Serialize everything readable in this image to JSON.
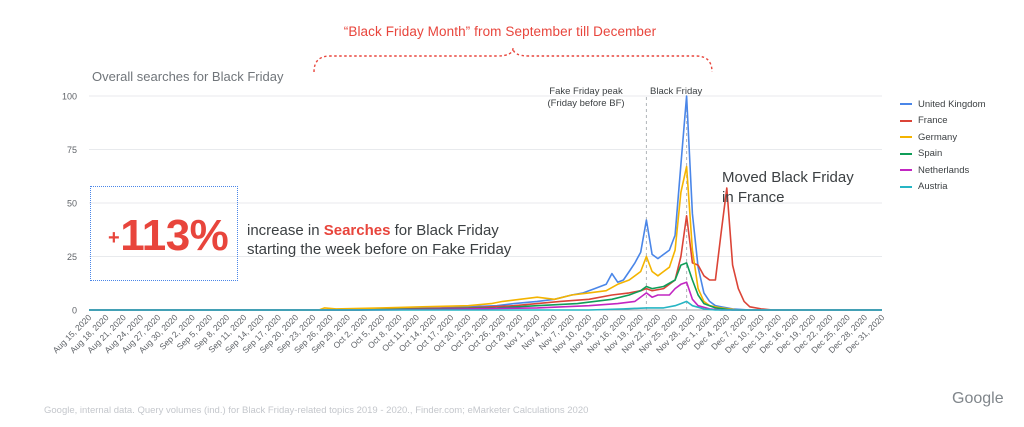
{
  "banner": "“Black Friday Month” from September till December",
  "plot_title": "Overall searches for Black Friday",
  "callout": {
    "plus": "+",
    "value": "113%",
    "line1_pre": "increase in ",
    "line1_highlight": "Searches",
    "line1_post": " for Black Friday",
    "line2": "starting the week before on Fake Friday"
  },
  "annotation_france": [
    "Moved Black Friday",
    "in France"
  ],
  "annotation_fake": [
    "Fake Friday peak",
    "(Friday before BF)"
  ],
  "annotation_bf": "Black Friday",
  "source": "Google, internal data. Query volumes (ind.) for Black Friday-related topics 2019 - 2020., Finder.com; eMarketer Calculations 2020",
  "brand": "Google",
  "colors": {
    "united_kingdom": "#4a86e8",
    "france": "#db4437",
    "germany": "#f4b400",
    "spain": "#0f9d58",
    "netherlands": "#c226c2",
    "austria": "#26b5c4",
    "accent": "#e8453c"
  },
  "chart_data": {
    "type": "line",
    "title": "Overall searches for Black Friday",
    "xlabel": "",
    "ylabel": "",
    "ylim": [
      0,
      100
    ],
    "yticks": [
      0,
      25,
      50,
      75,
      100
    ],
    "grid": true,
    "legend_position": "right",
    "x": [
      "Aug 15, 2020",
      "Aug 16, 2020",
      "Aug 17, 2020",
      "Aug 18, 2020",
      "Aug 19, 2020",
      "Aug 20, 2020",
      "Aug 21, 2020",
      "Aug 22, 2020",
      "Aug 23, 2020",
      "Aug 24, 2020",
      "Aug 25, 2020",
      "Aug 26, 2020",
      "Aug 27, 2020",
      "Aug 28, 2020",
      "Aug 29, 2020",
      "Aug 30, 2020",
      "Aug 31, 2020",
      "Sep 1, 2020",
      "Sep 2, 2020",
      "Sep 3, 2020",
      "Sep 4, 2020",
      "Sep 5, 2020",
      "Sep 6, 2020",
      "Sep 7, 2020",
      "Sep 8, 2020",
      "Sep 9, 2020",
      "Sep 10, 2020",
      "Sep 11, 2020",
      "Sep 12, 2020",
      "Sep 13, 2020",
      "Sep 14, 2020",
      "Sep 15, 2020",
      "Sep 16, 2020",
      "Sep 17, 2020",
      "Sep 18, 2020",
      "Sep 19, 2020",
      "Sep 20, 2020",
      "Sep 21, 2020",
      "Sep 22, 2020",
      "Sep 23, 2020",
      "Sep 24, 2020",
      "Sep 25, 2020",
      "Sep 26, 2020",
      "Sep 27, 2020",
      "Sep 28, 2020",
      "Sep 29, 2020",
      "Sep 30, 2020",
      "Oct 1, 2020",
      "Oct 2, 2020",
      "Oct 3, 2020",
      "Oct 4, 2020",
      "Oct 5, 2020",
      "Oct 6, 2020",
      "Oct 7, 2020",
      "Oct 8, 2020",
      "Oct 9, 2020",
      "Oct 10, 2020",
      "Oct 11, 2020",
      "Oct 12, 2020",
      "Oct 13, 2020",
      "Oct 14, 2020",
      "Oct 15, 2020",
      "Oct 16, 2020",
      "Oct 17, 2020",
      "Oct 18, 2020",
      "Oct 19, 2020",
      "Oct 20, 2020",
      "Oct 21, 2020",
      "Oct 22, 2020",
      "Oct 23, 2020",
      "Oct 24, 2020",
      "Oct 25, 2020",
      "Oct 26, 2020",
      "Oct 27, 2020",
      "Oct 28, 2020",
      "Oct 29, 2020",
      "Oct 30, 2020",
      "Oct 31, 2020",
      "Nov 1, 2020",
      "Nov 2, 2020",
      "Nov 3, 2020",
      "Nov 4, 2020",
      "Nov 5, 2020",
      "Nov 6, 2020",
      "Nov 7, 2020",
      "Nov 8, 2020",
      "Nov 9, 2020",
      "Nov 10, 2020",
      "Nov 11, 2020",
      "Nov 12, 2020",
      "Nov 13, 2020",
      "Nov 14, 2020",
      "Nov 15, 2020",
      "Nov 16, 2020",
      "Nov 17, 2020",
      "Nov 18, 2020",
      "Nov 19, 2020",
      "Nov 20, 2020",
      "Nov 21, 2020",
      "Nov 22, 2020",
      "Nov 23, 2020",
      "Nov 24, 2020",
      "Nov 25, 2020",
      "Nov 26, 2020",
      "Nov 27, 2020",
      "Nov 28, 2020",
      "Nov 29, 2020",
      "Nov 30, 2020",
      "Dec 1, 2020",
      "Dec 2, 2020",
      "Dec 3, 2020",
      "Dec 4, 2020",
      "Dec 5, 2020",
      "Dec 6, 2020",
      "Dec 7, 2020",
      "Dec 8, 2020",
      "Dec 9, 2020",
      "Dec 10, 2020",
      "Dec 11, 2020",
      "Dec 12, 2020",
      "Dec 13, 2020",
      "Dec 14, 2020",
      "Dec 15, 2020",
      "Dec 16, 2020",
      "Dec 17, 2020",
      "Dec 18, 2020",
      "Dec 19, 2020",
      "Dec 20, 2020",
      "Dec 21, 2020",
      "Dec 22, 2020",
      "Dec 23, 2020",
      "Dec 24, 2020",
      "Dec 25, 2020",
      "Dec 26, 2020",
      "Dec 27, 2020",
      "Dec 28, 2020",
      "Dec 29, 2020",
      "Dec 30, 2020",
      "Dec 31, 2020"
    ],
    "x_tick_labels": [
      "Aug 15, 2020",
      "Aug 18, 2020",
      "Aug 21, 2020",
      "Aug 24, 2020",
      "Aug 27, 2020",
      "Aug 30, 2020",
      "Sep 2, 2020",
      "Sep 5, 2020",
      "Sep 8, 2020",
      "Sep 11, 2020",
      "Sep 14, 2020",
      "Sep 17, 2020",
      "Sep 20, 2020",
      "Sep 23, 2020",
      "Sep 26, 2020",
      "Sep 29, 2020",
      "Oct 2, 2020",
      "Oct 5, 2020",
      "Oct 8, 2020",
      "Oct 11, 2020",
      "Oct 14, 2020",
      "Oct 17, 2020",
      "Oct 20, 2020",
      "Oct 23, 2020",
      "Oct 26, 2020",
      "Oct 29, 2020",
      "Nov 1, 2020",
      "Nov 4, 2020",
      "Nov 7, 2020",
      "Nov 10, 2020",
      "Nov 13, 2020",
      "Nov 16, 2020",
      "Nov 19, 2020",
      "Nov 22, 2020",
      "Nov 25, 2020",
      "Nov 28, 2020",
      "Dec 1, 2020",
      "Dec 4, 2020",
      "Dec 7, 2020",
      "Dec 10, 2020",
      "Dec 13, 2020",
      "Dec 16, 2020",
      "Dec 19, 2020",
      "Dec 22, 2020",
      "Dec 25, 2020",
      "Dec 28, 2020",
      "Dec 31, 2020"
    ],
    "markers": [
      {
        "label": "Fake Friday peak",
        "x": "Nov 20, 2020"
      },
      {
        "label": "Black Friday",
        "x": "Nov 27, 2020"
      }
    ],
    "series": [
      {
        "name": "United Kingdom",
        "color_key": "united_kingdom",
        "points": [
          [
            "Aug 15, 2020",
            0
          ],
          [
            "Oct 1, 2020",
            0
          ],
          [
            "Oct 5, 2020",
            0.5
          ],
          [
            "Oct 10, 2020",
            1
          ],
          [
            "Oct 15, 2020",
            1
          ],
          [
            "Oct 20, 2020",
            1.5
          ],
          [
            "Oct 25, 2020",
            2
          ],
          [
            "Oct 28, 2020",
            3
          ],
          [
            "Nov 1, 2020",
            4
          ],
          [
            "Nov 4, 2020",
            5
          ],
          [
            "Nov 7, 2020",
            7
          ],
          [
            "Nov 9, 2020",
            8
          ],
          [
            "Nov 11, 2020",
            10
          ],
          [
            "Nov 13, 2020",
            12
          ],
          [
            "Nov 14, 2020",
            17
          ],
          [
            "Nov 15, 2020",
            13
          ],
          [
            "Nov 16, 2020",
            14
          ],
          [
            "Nov 17, 2020",
            18
          ],
          [
            "Nov 18, 2020",
            22
          ],
          [
            "Nov 19, 2020",
            27
          ],
          [
            "Nov 20, 2020",
            42
          ],
          [
            "Nov 21, 2020",
            26
          ],
          [
            "Nov 22, 2020",
            24
          ],
          [
            "Nov 23, 2020",
            26
          ],
          [
            "Nov 24, 2020",
            28
          ],
          [
            "Nov 25, 2020",
            35
          ],
          [
            "Nov 26, 2020",
            68
          ],
          [
            "Nov 27, 2020",
            100
          ],
          [
            "Nov 28, 2020",
            45
          ],
          [
            "Nov 29, 2020",
            20
          ],
          [
            "Nov 30, 2020",
            8
          ],
          [
            "Dec 1, 2020",
            4
          ],
          [
            "Dec 2, 2020",
            2
          ],
          [
            "Dec 3, 2020",
            1.5
          ],
          [
            "Dec 5, 2020",
            0.5
          ],
          [
            "Dec 8, 2020",
            0
          ],
          [
            "Dec 31, 2020",
            0
          ]
        ]
      },
      {
        "name": "France",
        "color_key": "france",
        "points": [
          [
            "Aug 15, 2020",
            0
          ],
          [
            "Oct 1, 2020",
            0
          ],
          [
            "Oct 10, 2020",
            0.5
          ],
          [
            "Oct 20, 2020",
            1
          ],
          [
            "Oct 28, 2020",
            2
          ],
          [
            "Nov 5, 2020",
            4
          ],
          [
            "Nov 10, 2020",
            5
          ],
          [
            "Nov 14, 2020",
            7
          ],
          [
            "Nov 17, 2020",
            8
          ],
          [
            "Nov 19, 2020",
            9
          ],
          [
            "Nov 20, 2020",
            10
          ],
          [
            "Nov 21, 2020",
            9
          ],
          [
            "Nov 23, 2020",
            10
          ],
          [
            "Nov 25, 2020",
            14
          ],
          [
            "Nov 26, 2020",
            25
          ],
          [
            "Nov 27, 2020",
            44
          ],
          [
            "Nov 28, 2020",
            22
          ],
          [
            "Nov 29, 2020",
            21
          ],
          [
            "Nov 30, 2020",
            16
          ],
          [
            "Dec 1, 2020",
            14
          ],
          [
            "Dec 2, 2020",
            14
          ],
          [
            "Dec 3, 2020",
            36
          ],
          [
            "Dec 4, 2020",
            57
          ],
          [
            "Dec 5, 2020",
            21
          ],
          [
            "Dec 6, 2020",
            10
          ],
          [
            "Dec 7, 2020",
            4
          ],
          [
            "Dec 8, 2020",
            1.5
          ],
          [
            "Dec 10, 2020",
            0.5
          ],
          [
            "Dec 12, 2020",
            0
          ],
          [
            "Dec 31, 2020",
            0
          ]
        ]
      },
      {
        "name": "Germany",
        "color_key": "germany",
        "points": [
          [
            "Aug 15, 2020",
            0
          ],
          [
            "Sep 24, 2020",
            0
          ],
          [
            "Sep 25, 2020",
            1
          ],
          [
            "Sep 27, 2020",
            0.5
          ],
          [
            "Oct 5, 2020",
            1
          ],
          [
            "Oct 12, 2020",
            1.5
          ],
          [
            "Oct 20, 2020",
            2
          ],
          [
            "Oct 24, 2020",
            3
          ],
          [
            "Oct 26, 2020",
            4
          ],
          [
            "Oct 29, 2020",
            5
          ],
          [
            "Nov 1, 2020",
            6
          ],
          [
            "Nov 4, 2020",
            5
          ],
          [
            "Nov 7, 2020",
            7
          ],
          [
            "Nov 10, 2020",
            8
          ],
          [
            "Nov 13, 2020",
            9
          ],
          [
            "Nov 15, 2020",
            12
          ],
          [
            "Nov 17, 2020",
            14
          ],
          [
            "Nov 19, 2020",
            18
          ],
          [
            "Nov 20, 2020",
            25
          ],
          [
            "Nov 21, 2020",
            18
          ],
          [
            "Nov 22, 2020",
            16
          ],
          [
            "Nov 23, 2020",
            18
          ],
          [
            "Nov 24, 2020",
            20
          ],
          [
            "Nov 25, 2020",
            28
          ],
          [
            "Nov 26, 2020",
            55
          ],
          [
            "Nov 27, 2020",
            67
          ],
          [
            "Nov 28, 2020",
            28
          ],
          [
            "Nov 29, 2020",
            10
          ],
          [
            "Nov 30, 2020",
            4
          ],
          [
            "Dec 1, 2020",
            2
          ],
          [
            "Dec 3, 2020",
            1
          ],
          [
            "Dec 6, 2020",
            0
          ],
          [
            "Dec 31, 2020",
            0
          ]
        ]
      },
      {
        "name": "Spain",
        "color_key": "spain",
        "points": [
          [
            "Aug 15, 2020",
            0
          ],
          [
            "Oct 1, 2020",
            0
          ],
          [
            "Oct 15, 2020",
            0.5
          ],
          [
            "Oct 25, 2020",
            1
          ],
          [
            "Nov 1, 2020",
            2
          ],
          [
            "Nov 8, 2020",
            3
          ],
          [
            "Nov 14, 2020",
            5
          ],
          [
            "Nov 17, 2020",
            7
          ],
          [
            "Nov 19, 2020",
            9
          ],
          [
            "Nov 20, 2020",
            11
          ],
          [
            "Nov 21, 2020",
            10
          ],
          [
            "Nov 23, 2020",
            11
          ],
          [
            "Nov 25, 2020",
            14
          ],
          [
            "Nov 26, 2020",
            21
          ],
          [
            "Nov 27, 2020",
            22
          ],
          [
            "Nov 28, 2020",
            14
          ],
          [
            "Nov 29, 2020",
            7
          ],
          [
            "Nov 30, 2020",
            3
          ],
          [
            "Dec 2, 2020",
            1
          ],
          [
            "Dec 5, 2020",
            0
          ],
          [
            "Dec 31, 2020",
            0
          ]
        ]
      },
      {
        "name": "Netherlands",
        "color_key": "netherlands",
        "points": [
          [
            "Aug 15, 2020",
            0
          ],
          [
            "Oct 5, 2020",
            0
          ],
          [
            "Oct 20, 2020",
            0.5
          ],
          [
            "Nov 1, 2020",
            1
          ],
          [
            "Nov 10, 2020",
            2
          ],
          [
            "Nov 15, 2020",
            3
          ],
          [
            "Nov 18, 2020",
            4
          ],
          [
            "Nov 20, 2020",
            8
          ],
          [
            "Nov 21, 2020",
            6
          ],
          [
            "Nov 22, 2020",
            7
          ],
          [
            "Nov 24, 2020",
            7
          ],
          [
            "Nov 25, 2020",
            10
          ],
          [
            "Nov 26, 2020",
            12
          ],
          [
            "Nov 27, 2020",
            13
          ],
          [
            "Nov 28, 2020",
            5
          ],
          [
            "Nov 29, 2020",
            2
          ],
          [
            "Dec 1, 2020",
            0.5
          ],
          [
            "Dec 3, 2020",
            0
          ],
          [
            "Dec 31, 2020",
            0
          ]
        ]
      },
      {
        "name": "Austria",
        "color_key": "austria",
        "points": [
          [
            "Aug 15, 2020",
            0
          ],
          [
            "Nov 10, 2020",
            0
          ],
          [
            "Nov 16, 2020",
            0.5
          ],
          [
            "Nov 20, 2020",
            1
          ],
          [
            "Nov 23, 2020",
            1
          ],
          [
            "Nov 25, 2020",
            2
          ],
          [
            "Nov 26, 2020",
            3
          ],
          [
            "Nov 27, 2020",
            4
          ],
          [
            "Nov 28, 2020",
            2
          ],
          [
            "Nov 30, 2020",
            0.5
          ],
          [
            "Dec 2, 2020",
            0
          ],
          [
            "Dec 31, 2020",
            0
          ]
        ]
      }
    ]
  }
}
